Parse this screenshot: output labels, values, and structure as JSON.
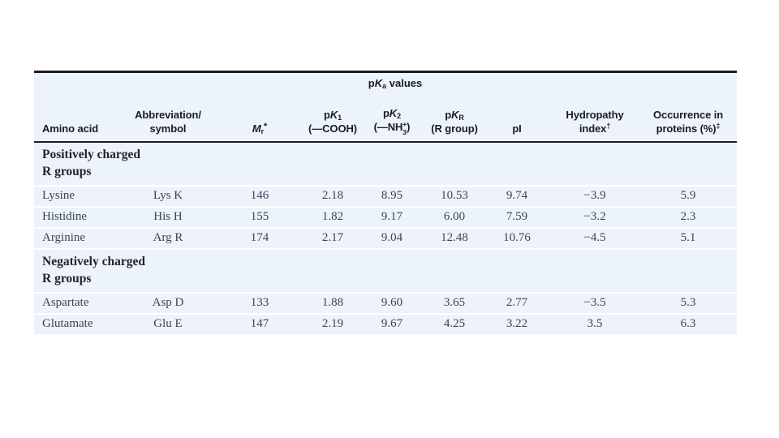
{
  "table": {
    "colors": {
      "rule": "#1c1a26",
      "body_bg": "#edf3fa",
      "header_text": "#171b2b",
      "data_text": "#3c4454"
    },
    "spanner": {
      "p": "p",
      "k": "K",
      "sub": "a",
      "suffix": " values"
    },
    "columns": {
      "amino_acid": "Amino acid",
      "abbrev_line1": "Abbreviation/",
      "abbrev_line2": "symbol",
      "mr_m": "M",
      "mr_sub": "r",
      "mr_marker": "*",
      "pk1_p": "p",
      "pk1_k": "K",
      "pk1_sub": "1",
      "pk1_line2": "(—COOH)",
      "pk2_p": "p",
      "pk2_k": "K",
      "pk2_sub": "2",
      "pk2_pre": "(—NH",
      "pk2_stack_top": "+",
      "pk2_stack_bottom": "3",
      "pk2_post": ")",
      "pkr_p": "p",
      "pkr_k": "K",
      "pkr_sub": "R",
      "pkr_line2": "(R group)",
      "pi": "pI",
      "hydro_line1": "Hydropathy",
      "hydro_line2": "index",
      "hydro_marker": "†",
      "occ_line1": "Occurrence in",
      "occ_line2": "proteins (%)",
      "occ_marker": "‡"
    },
    "sections": [
      {
        "line1": "Positively charged",
        "line2": "R groups"
      },
      {
        "line1": "Negatively charged",
        "line2": "R groups"
      }
    ],
    "rows": [
      {
        "name": "Lysine",
        "abbrev": "Lys K",
        "mr": "146",
        "pk1": "2.18",
        "pk2": "8.95",
        "pkr": "10.53",
        "pi": "9.74",
        "hydropathy": "−3.9",
        "occurrence": "5.9"
      },
      {
        "name": "Histidine",
        "abbrev": "His H",
        "mr": "155",
        "pk1": "1.82",
        "pk2": "9.17",
        "pkr": "6.00",
        "pi": "7.59",
        "hydropathy": "−3.2",
        "occurrence": "2.3"
      },
      {
        "name": "Arginine",
        "abbrev": "Arg R",
        "mr": "174",
        "pk1": "2.17",
        "pk2": "9.04",
        "pkr": "12.48",
        "pi": "10.76",
        "hydropathy": "−4.5",
        "occurrence": "5.1"
      },
      {
        "name": "Aspartate",
        "abbrev": "Asp D",
        "mr": "133",
        "pk1": "1.88",
        "pk2": "9.60",
        "pkr": "3.65",
        "pi": "2.77",
        "hydropathy": "−3.5",
        "occurrence": "5.3"
      },
      {
        "name": "Glutamate",
        "abbrev": "Glu E",
        "mr": "147",
        "pk1": "2.19",
        "pk2": "9.67",
        "pkr": "4.25",
        "pi": "3.22",
        "hydropathy": "3.5",
        "occurrence": "6.3"
      }
    ]
  }
}
